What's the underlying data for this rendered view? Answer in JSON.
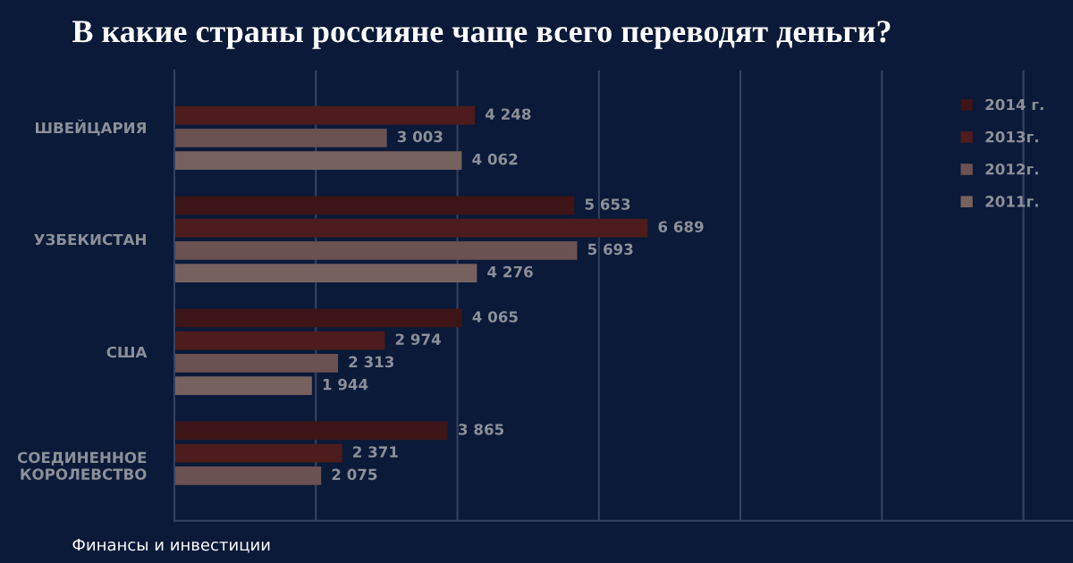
{
  "chart_data": {
    "type": "bar",
    "orientation": "horizontal",
    "title": "В какие страны россияне чаще всего переводят деньги?",
    "annotations": [
      "Финансы и инвестиции"
    ],
    "categories": [
      "ШВЕЙЦАРИЯ",
      "УЗБЕКИСТАН",
      "США",
      "СОЕДИНЕННОЕ\nКОРОЛЕВСТВО"
    ],
    "series": [
      {
        "name": "2014 г.",
        "color": "#3d1517",
        "values": [
          null,
          5653,
          4065,
          3865
        ],
        "value_labels": [
          null,
          "5 653",
          "4 065",
          "3 865"
        ]
      },
      {
        "name": "2013г.",
        "color": "#4e1c1c",
        "values": [
          4248,
          6689,
          2974,
          2371
        ],
        "value_labels": [
          "4 248",
          "6 689",
          "2 974",
          "2 371"
        ]
      },
      {
        "name": "2012г.",
        "color": "#6b5151",
        "values": [
          3003,
          5693,
          2313,
          2075
        ],
        "value_labels": [
          "3 003",
          "5 693",
          "2 313",
          "2 075"
        ]
      },
      {
        "name": "2011г.",
        "color": "#77615f",
        "values": [
          4062,
          4276,
          1944,
          null
        ],
        "value_labels": [
          "4 062",
          "4 276",
          "1 944",
          null
        ]
      }
    ],
    "xlim": [
      0,
      12700
    ],
    "xticks": [
      {
        "value": 2000,
        "label": null
      },
      {
        "value": 4000,
        "label": null
      },
      {
        "value": 6000,
        "label": null
      },
      {
        "value": 8000,
        "label": null
      },
      {
        "value": 10000,
        "label": null
      },
      {
        "value": 12000,
        "label": null
      }
    ],
    "tick_labels": "y",
    "grid": "x",
    "legend": "top right"
  }
}
